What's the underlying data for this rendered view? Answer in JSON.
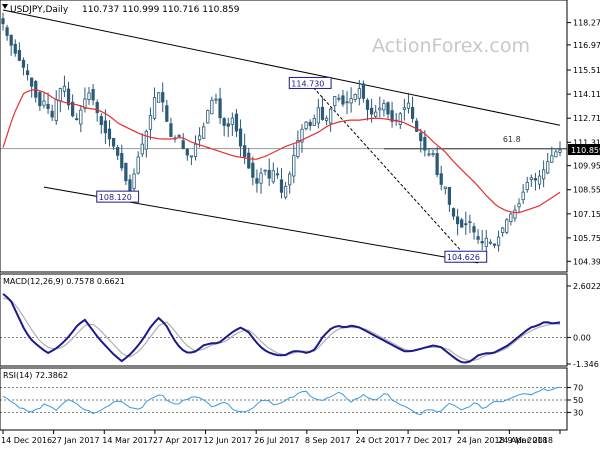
{
  "header": {
    "symbol": "USDJPY,Daily",
    "ohlc": "110.737 110.999 110.716 110.859",
    "watermark": "ActionForex.com"
  },
  "colors": {
    "candle": "#2a5a78",
    "ma": "#e23030",
    "macd_line": "#1a1a8c",
    "macd_signal": "#b0b0b0",
    "rsi": "#3a9be0",
    "grid": "#000000",
    "label_bg": "#ffffff",
    "label_border": "#1a1a8c"
  },
  "chart_data": [
    {
      "type": "candlestick",
      "title": "USDJPY,Daily",
      "ylim": [
        104.0,
        119.0
      ],
      "yticks": [
        "118.270",
        "116.970",
        "115.510",
        "114.110",
        "112.710",
        "111.310",
        "109.950",
        "108.550",
        "107.150",
        "105.750",
        "104.390"
      ],
      "last_price": "110.859",
      "xticks": [
        "14 Dec 2016",
        "27 Jan 2017",
        "14 Mar 2017",
        "27 Apr 2017",
        "12 Jun 2017",
        "26 Jul 2017",
        "8 Sep 2017",
        "24 Oct 2017",
        "7 Dec 2017",
        "24 Jan 2018",
        "9 Mar 2018",
        "24 Apr 2018"
      ],
      "close_path": [
        118.2,
        117.2,
        116.5,
        115.9,
        115.3,
        114.3,
        113.4,
        113.8,
        112.6,
        114.1,
        114.8,
        113.2,
        112.5,
        113.3,
        114.3,
        113.7,
        112.5,
        111.8,
        111.3,
        110.5,
        109.4,
        108.3,
        110.1,
        111.2,
        112.3,
        113.9,
        114.3,
        112.6,
        111.3,
        111.8,
        110.7,
        110.4,
        111.4,
        112.0,
        113.4,
        114.1,
        112.5,
        112.1,
        112.8,
        111.3,
        110.4,
        109.4,
        108.9,
        109.9,
        109.2,
        109.9,
        108.4,
        108.9,
        110.5,
        111.8,
        112.5,
        112.2,
        113.4,
        112.4,
        113.1,
        114.2,
        113.5,
        113.7,
        114.0,
        114.5,
        113.3,
        112.9,
        113.2,
        113.6,
        112.5,
        112.6,
        113.2,
        113.6,
        112.2,
        111.4,
        110.6,
        110.7,
        108.9,
        108.8,
        107.3,
        106.6,
        106.3,
        106.8,
        105.9,
        105.4,
        105.8,
        105.2,
        105.9,
        106.7,
        107.2,
        107.5,
        108.5,
        109.3,
        109.1,
        109.5,
        110.2,
        110.7,
        110.86
      ],
      "ma_path": [
        111.0,
        112.9,
        114.2,
        114.4,
        114.2,
        113.8,
        113.6,
        113.5,
        113.3,
        113.2,
        112.9,
        112.4,
        112.1,
        111.8,
        111.6,
        111.5,
        111.5,
        111.6,
        111.3,
        111.1,
        110.9,
        110.7,
        110.5,
        110.4,
        110.3,
        110.5,
        110.8,
        111.1,
        111.3,
        111.6,
        111.9,
        112.3,
        112.5,
        112.6,
        112.6,
        112.7,
        112.7,
        112.6,
        112.5,
        112.2,
        111.9,
        111.3,
        110.8,
        110.1,
        109.5,
        108.9,
        108.2,
        107.6,
        107.3,
        107.2,
        107.4,
        107.6,
        108.0,
        108.4
      ],
      "ma_name": "",
      "annotations": [
        {
          "label": "114.730",
          "x_index": 75,
          "value": 114.73
        },
        {
          "label": "108.120",
          "x_index": 28,
          "value": 108.12
        },
        {
          "label": "104.626",
          "x_index": 113,
          "value": 104.626
        },
        {
          "label": "61.8",
          "x_index": 124,
          "value": 111.2
        }
      ],
      "channel_upper": [
        [
          0,
          119.0
        ],
        [
          136,
          112.3
        ]
      ],
      "channel_lower": [
        [
          10,
          108.7
        ],
        [
          116,
          104.3
        ]
      ],
      "fib_line_level": 110.93,
      "dashed_trend": [
        [
          75,
          114.7
        ],
        [
          113,
          104.7
        ]
      ],
      "grid": false,
      "legend": "none"
    },
    {
      "type": "line",
      "title": "MACD(12,26,9) 0.7578 0.6621",
      "ylim": [
        -1.346,
        2.6022
      ],
      "yticks": [
        "2.6022",
        "0.00",
        "-1.346"
      ],
      "zero_line": 0,
      "series": [
        {
          "name": "MACD",
          "values": [
            2.2,
            1.9,
            1.1,
            0.3,
            -0.2,
            -0.5,
            -0.8,
            -0.6,
            -0.3,
            0.1,
            0.6,
            0.9,
            0.4,
            -0.1,
            -0.5,
            -0.9,
            -1.2,
            -0.9,
            -0.5,
            0.0,
            0.6,
            1.0,
            0.6,
            -0.1,
            -0.6,
            -0.8,
            -0.7,
            -0.4,
            -0.3,
            -0.3,
            0.0,
            0.3,
            0.5,
            0.3,
            -0.2,
            -0.6,
            -0.8,
            -0.9,
            -0.9,
            -0.7,
            -0.7,
            -0.8,
            -0.6,
            0.0,
            0.4,
            0.6,
            0.5,
            0.6,
            0.5,
            0.3,
            0.1,
            -0.1,
            -0.3,
            -0.5,
            -0.7,
            -0.7,
            -0.6,
            -0.5,
            -0.4,
            -0.5,
            -0.8,
            -1.1,
            -1.3,
            -1.2,
            -0.9,
            -0.8,
            -0.8,
            -0.6,
            -0.4,
            -0.1,
            0.2,
            0.5,
            0.6,
            0.8,
            0.7,
            0.76
          ]
        },
        {
          "name": "Signal",
          "values": [
            2.0,
            1.9,
            1.5,
            0.9,
            0.3,
            -0.2,
            -0.5,
            -0.6,
            -0.5,
            -0.2,
            0.2,
            0.6,
            0.7,
            0.4,
            0.0,
            -0.4,
            -0.8,
            -1.0,
            -0.8,
            -0.4,
            0.1,
            0.6,
            0.8,
            0.4,
            -0.1,
            -0.5,
            -0.7,
            -0.6,
            -0.4,
            -0.3,
            -0.2,
            0.1,
            0.3,
            0.4,
            0.1,
            -0.3,
            -0.6,
            -0.8,
            -0.9,
            -0.8,
            -0.7,
            -0.7,
            -0.7,
            -0.3,
            0.1,
            0.4,
            0.5,
            0.5,
            0.5,
            0.4,
            0.2,
            0.0,
            -0.2,
            -0.4,
            -0.6,
            -0.7,
            -0.6,
            -0.5,
            -0.5,
            -0.5,
            -0.6,
            -0.9,
            -1.1,
            -1.2,
            -1.1,
            -0.9,
            -0.8,
            -0.7,
            -0.5,
            -0.2,
            0.1,
            0.3,
            0.5,
            0.6,
            0.7,
            0.66
          ]
        }
      ]
    },
    {
      "type": "line",
      "title": "RSI(14) 72.3862",
      "ylim": [
        0,
        100
      ],
      "yticks": [
        "70",
        "50",
        "30"
      ],
      "series": [
        {
          "name": "RSI",
          "values": [
            58,
            50,
            44,
            38,
            33,
            30,
            36,
            42,
            39,
            33,
            42,
            50,
            47,
            41,
            35,
            31,
            28,
            34,
            40,
            46,
            51,
            44,
            39,
            35,
            40,
            48,
            55,
            60,
            52,
            45,
            42,
            48,
            54,
            58,
            52,
            46,
            41,
            44,
            48,
            40,
            35,
            32,
            30,
            38,
            46,
            52,
            48,
            42,
            45,
            50,
            55,
            60,
            65,
            58,
            52,
            49,
            53,
            57,
            61,
            55,
            48,
            52,
            58,
            54,
            50,
            55,
            60,
            52,
            46,
            40,
            34,
            30,
            27,
            35,
            33,
            30,
            36,
            44,
            39,
            33,
            38,
            45,
            41,
            36,
            44,
            50,
            47,
            52,
            56,
            60,
            62,
            58,
            64,
            68,
            66,
            70,
            72
          ]
        }
      ]
    }
  ]
}
